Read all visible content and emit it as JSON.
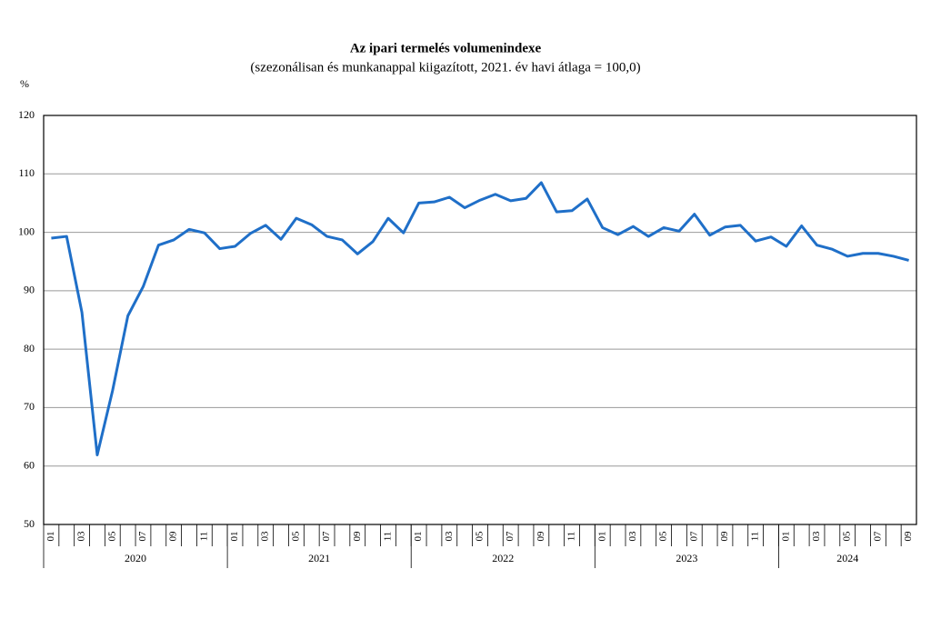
{
  "chart_data": {
    "type": "line",
    "title": "Az ipari termelés volumenindexe",
    "subtitle": "(szezonálisan és munkanappal kiigazított, 2021. év havi átlaga = 100,0)",
    "ylabel": "%",
    "categories": [
      "01",
      null,
      "03",
      null,
      "05",
      null,
      "07",
      null,
      "09",
      null,
      "11",
      null,
      "01",
      null,
      "03",
      null,
      "05",
      null,
      "07",
      null,
      "09",
      null,
      "11",
      null,
      "01",
      null,
      "03",
      null,
      "05",
      null,
      "07",
      null,
      "09",
      null,
      "11",
      null,
      "01",
      null,
      "03",
      null,
      "05",
      null,
      "07",
      null,
      "09",
      null,
      "11",
      null,
      "01",
      null,
      "03",
      null,
      "05",
      null,
      "07",
      null,
      "09"
    ],
    "years": [
      "2020",
      "2021",
      "2022",
      "2023",
      "2024"
    ],
    "series": [
      {
        "name": "Volumenindex",
        "color": "#1f6fc8",
        "values": [
          99.0,
          99.3,
          86.3,
          61.9,
          72.9,
          85.7,
          90.7,
          97.8,
          98.7,
          100.5,
          99.9,
          97.2,
          97.6,
          99.8,
          101.2,
          98.8,
          102.4,
          101.3,
          99.3,
          98.7,
          96.3,
          98.4,
          102.4,
          99.9,
          105.0,
          105.2,
          106.0,
          104.2,
          105.5,
          106.5,
          105.4,
          105.8,
          108.5,
          103.5,
          103.7,
          105.7,
          100.8,
          99.6,
          101.0,
          99.3,
          100.8,
          100.2,
          103.1,
          99.5,
          100.9,
          101.2,
          98.5,
          99.2,
          97.6,
          101.1,
          97.8,
          97.1,
          95.9,
          96.4,
          96.4,
          95.9,
          95.2
        ]
      }
    ],
    "ylim": [
      50,
      120
    ],
    "yticks": [
      50,
      60,
      70,
      80,
      90,
      100,
      110,
      120
    ],
    "grid": true
  }
}
